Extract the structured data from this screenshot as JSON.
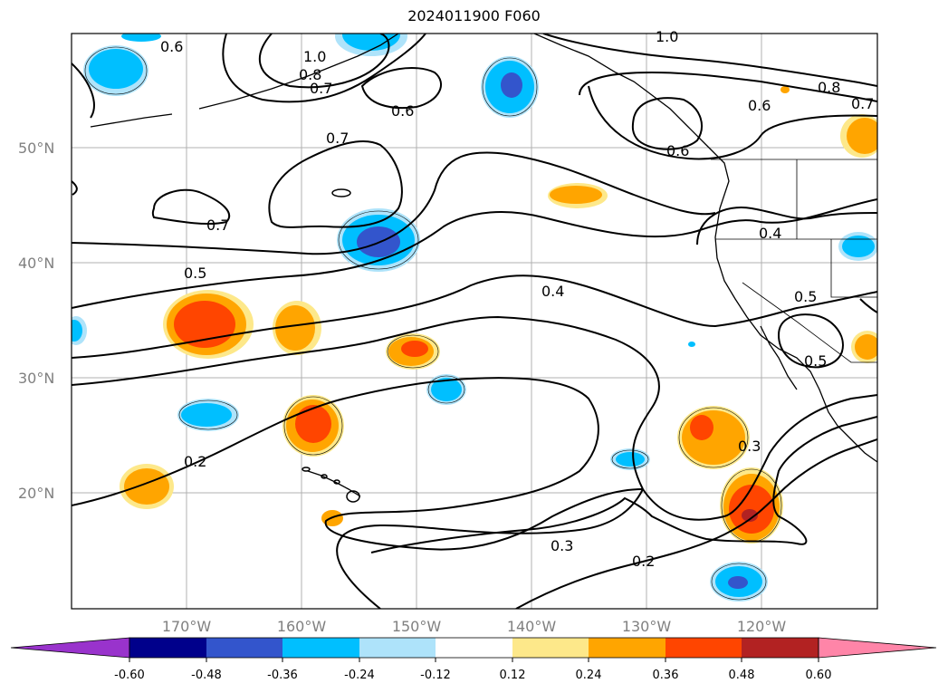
{
  "title": "2024011900 F060",
  "lat_labels": [
    "50°N",
    "40°N",
    "30°N",
    "20°N"
  ],
  "lon_labels": [
    "170°W",
    "160°W",
    "150°W",
    "140°W",
    "130°W",
    "120°W"
  ],
  "contour_labels": [
    "0.6",
    "1.0",
    "0.8",
    "0.7",
    "0.6",
    "0.7",
    "0.7",
    "0.5",
    "0.4",
    "0.2",
    "0.3",
    "0.5",
    "0.4",
    "0.3",
    "0.2",
    "1.0",
    "0.8",
    "0.7",
    "0.6",
    "0.6",
    "0.5"
  ],
  "colorbar": {
    "ticks": [
      "-0.60",
      "-0.48",
      "-0.36",
      "-0.24",
      "-0.12",
      "0.12",
      "0.24",
      "0.36",
      "0.48",
      "0.60"
    ],
    "colors": [
      "#9933cc",
      "#00008b",
      "#3355cc",
      "#00bfff",
      "#aee3fa",
      "#ffffff",
      "#fde88a",
      "#ffa500",
      "#ff4500",
      "#b22222",
      "#ff85a8"
    ]
  }
}
